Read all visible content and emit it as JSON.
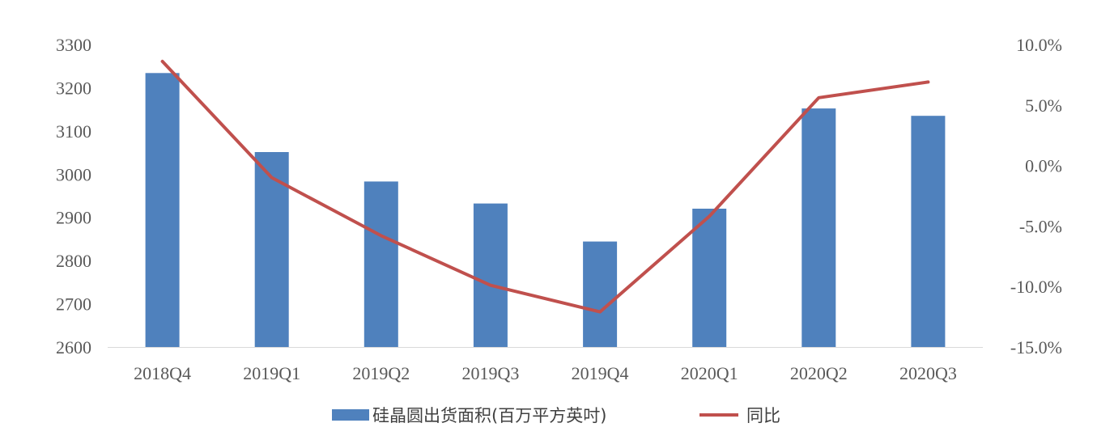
{
  "chart_data": {
    "type": "bar",
    "title": "",
    "xlabel": "",
    "ylabel": "",
    "categories": [
      "2018Q4",
      "2019Q1",
      "2019Q2",
      "2019Q3",
      "2019Q4",
      "2020Q1",
      "2020Q2",
      "2020Q3"
    ],
    "series": [
      {
        "name": "硅晶圆出货面积(百万平方英吋)",
        "type": "bar",
        "axis": "left",
        "color": "#4F81BD",
        "values": [
          3234,
          3051,
          2983,
          2932,
          2844,
          2920,
          3152,
          3135
        ]
      },
      {
        "name": "同比",
        "type": "line",
        "axis": "right",
        "color": "#C0504D",
        "values": [
          8.6,
          -1.0,
          -5.8,
          -9.9,
          -12.1,
          -4.2,
          5.6,
          6.9
        ]
      }
    ],
    "y_left": {
      "ylim": [
        2600,
        3300
      ],
      "ticks": [
        2600,
        2700,
        2800,
        2900,
        3000,
        3100,
        3200,
        3300
      ],
      "tick_labels": [
        "2600",
        "2700",
        "2800",
        "2900",
        "3000",
        "3100",
        "3200",
        "3300"
      ]
    },
    "y_right": {
      "ylim": [
        -15,
        10
      ],
      "unit": "%",
      "ticks": [
        -15,
        -10,
        -5,
        0,
        5,
        10
      ],
      "tick_labels": [
        "-15.0%",
        "-10.0%",
        "-5.0%",
        "0.0%",
        "5.0%",
        "10.0%"
      ]
    },
    "grid": false,
    "legend": {
      "position": "bottom"
    }
  }
}
